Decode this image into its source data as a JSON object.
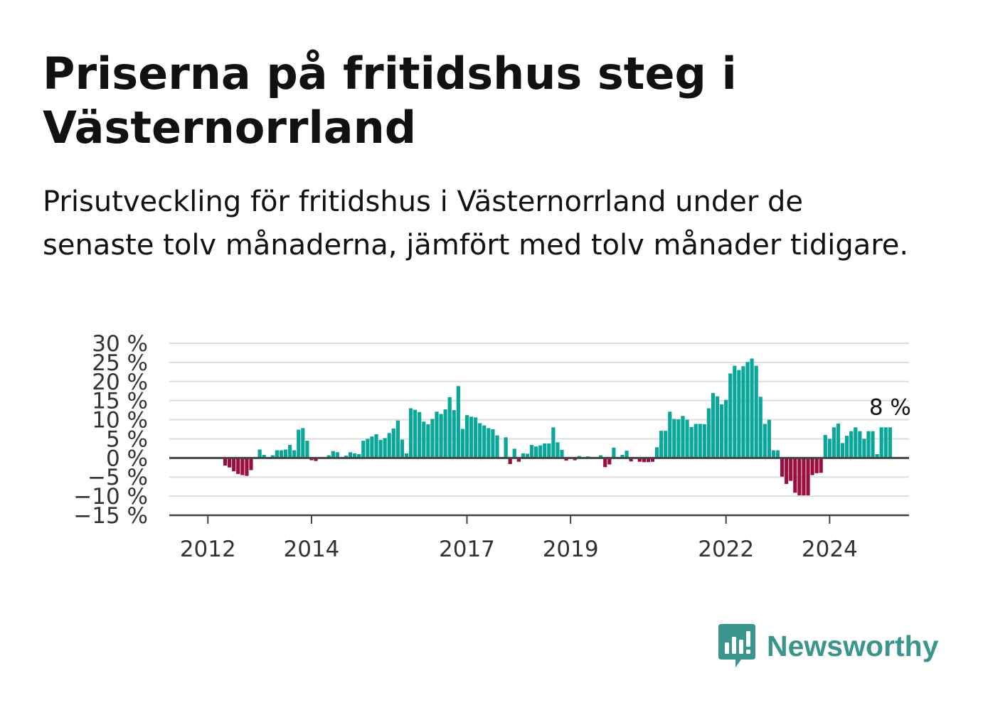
{
  "title": "Priserna på fritidshus steg i Västernorrland",
  "subtitle": "Prisutveckling för fritidshus i Västernorrland under de senaste tolv månaderna, jämfört med tolv månader tidigare.",
  "brand": {
    "name": "Newsworthy",
    "icon": "newsworthy-logo-icon",
    "color": "#3a968c"
  },
  "colors": {
    "positive": "#0ba69a",
    "negative": "#9b0f3f",
    "grid": "#dddddd",
    "zero_line": "#444444"
  },
  "chart_data": {
    "type": "bar",
    "title": "",
    "xlabel": "",
    "ylabel": "",
    "ylim": [
      -15,
      30
    ],
    "y_ticks": [
      "30 %",
      "25 %",
      "20 %",
      "15 %",
      "10 %",
      "5 %",
      "0 %",
      "−5 %",
      "−10 %",
      "−15 %"
    ],
    "x_ticks": [
      "2012",
      "2014",
      "2017",
      "2019",
      "2022",
      "2024"
    ],
    "x_start": "2011-09",
    "frequency": "monthly",
    "last_value_label": "8 %",
    "grid": true,
    "legend": "none",
    "values": [
      0,
      0,
      0,
      0,
      0,
      0,
      0,
      0,
      -2,
      -2.5,
      -3.5,
      -4.2,
      -4.5,
      -4.7,
      -3.2,
      0,
      2.2,
      0.8,
      0,
      0.7,
      2,
      2,
      2.2,
      3.4,
      2,
      7.4,
      7.8,
      4.5,
      -0.6,
      -0.8,
      0,
      0,
      0.7,
      1.8,
      1.5,
      0,
      0.6,
      1.5,
      1.2,
      1,
      4.5,
      5,
      5.6,
      6.2,
      4.7,
      5.2,
      6.5,
      7.7,
      9.8,
      4.8,
      1.2,
      13,
      12.6,
      12,
      9.5,
      8.8,
      10.2,
      12.1,
      11.5,
      12.7,
      15.9,
      12.5,
      18.8,
      7.6,
      11.2,
      10.8,
      10.6,
      9.1,
      8.5,
      7.8,
      7.5,
      5.9,
      0,
      5.4,
      -1.6,
      2.4,
      -1,
      1.2,
      1.1,
      3.4,
      3,
      3.3,
      3.8,
      3.8,
      8,
      4.1,
      2.1,
      -0.7,
      0,
      -0.6,
      0.5,
      0,
      0.4,
      0,
      0,
      0.7,
      -2.4,
      -1.7,
      2.7,
      0,
      0.8,
      1.9,
      -0.9,
      0,
      -1,
      -1.1,
      -1.1,
      -1,
      2.8,
      7.1,
      7.1,
      12.1,
      10.2,
      10.1,
      11,
      10,
      8.1,
      8.9,
      8.9,
      8.8,
      13,
      17,
      16.1,
      14,
      15.2,
      22.1,
      24.1,
      23,
      24,
      25.1,
      26,
      24.1,
      16,
      8.9,
      10,
      2,
      2,
      -4.9,
      -6.8,
      -6,
      -9.1,
      -9.8,
      -9.8,
      -9.8,
      -4.5,
      -4,
      -3.9,
      6,
      5,
      8,
      9,
      3.9,
      5.8,
      7,
      8,
      7,
      5,
      7,
      7,
      1,
      8,
      8,
      8
    ]
  }
}
